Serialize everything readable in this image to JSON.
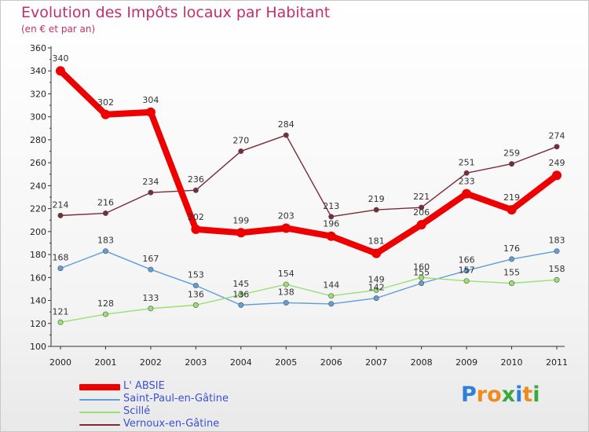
{
  "chart_data": {
    "type": "line",
    "title": "Evolution des Impôts locaux par Habitant",
    "subtitle": "(en € et par an)",
    "x": [
      "2000",
      "2001",
      "2002",
      "2003",
      "2004",
      "2005",
      "2006",
      "2007",
      "2008",
      "2009",
      "2010",
      "2011"
    ],
    "yticks": [
      "100",
      "120",
      "140",
      "160",
      "180",
      "200",
      "220",
      "240",
      "260",
      "280",
      "300",
      "320",
      "340",
      "360"
    ],
    "ylim": [
      100,
      360
    ],
    "grid": false,
    "legend_position": "bottom-left",
    "series": [
      {
        "name": "L' ABSIE",
        "color": "#ee0000",
        "values": [
          340,
          302,
          304,
          202,
          199,
          203,
          196,
          181,
          206,
          233,
          219,
          249
        ]
      },
      {
        "name": "Saint-Paul-en-Gâtine",
        "color": "#5f9ed8",
        "values": [
          168,
          183,
          167,
          153,
          136,
          138,
          137,
          142,
          155,
          166,
          176,
          183
        ]
      },
      {
        "name": "Scillé",
        "color": "#98e070",
        "values": [
          121,
          128,
          133,
          136,
          145,
          154,
          144,
          149,
          160,
          157,
          155,
          158
        ]
      },
      {
        "name": "Vernoux-en-Gâtine",
        "color": "#7a2a38",
        "values": [
          214,
          216,
          234,
          236,
          270,
          284,
          213,
          219,
          221,
          251,
          259,
          274
        ]
      }
    ],
    "data_labels": [
      [
        "340",
        "302",
        "304",
        "202",
        "199",
        "203",
        "196",
        "181",
        "206",
        "233",
        "219",
        "249"
      ],
      [
        "168",
        "183",
        "167",
        "153",
        "136",
        "138",
        "",
        "142",
        "155",
        "166",
        "176",
        "183"
      ],
      [
        "121",
        "128",
        "133",
        "136",
        "145",
        "154",
        "144",
        "149",
        "160",
        "157",
        "155",
        "158"
      ],
      [
        "214",
        "216",
        "234",
        "236",
        "270",
        "284",
        "213",
        "219",
        "221",
        "251",
        "259",
        "274"
      ]
    ]
  },
  "brand": {
    "letters": [
      "P",
      "r",
      "o",
      "x",
      "i",
      "t",
      "i"
    ],
    "colors": [
      "#2f7fd8",
      "#f08a1c",
      "#f08a1c",
      "#3aa83a",
      "#2f7fd8",
      "#f08a1c",
      "#3aa83a"
    ]
  }
}
